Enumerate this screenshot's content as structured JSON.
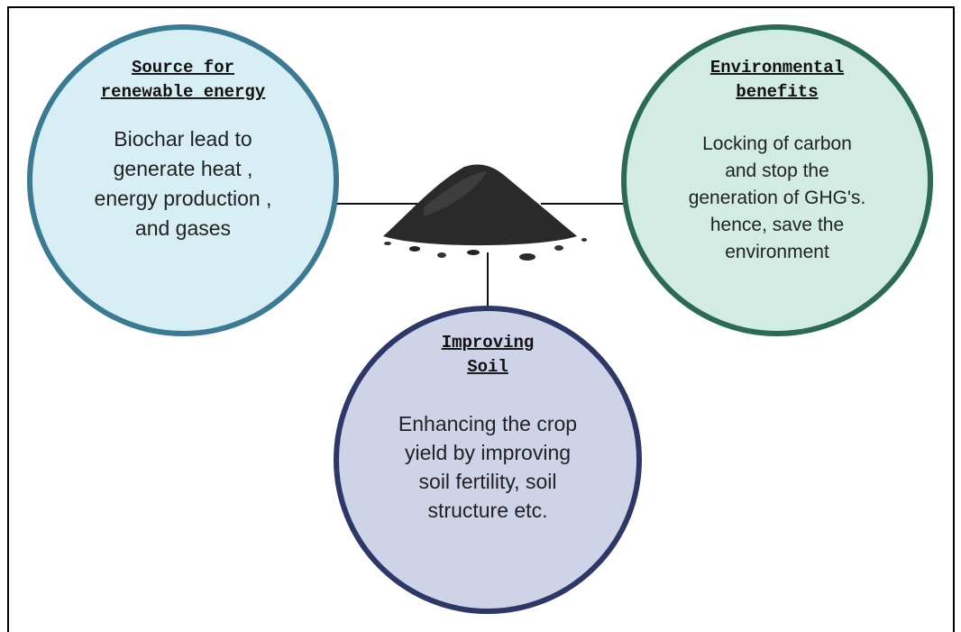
{
  "nodes": [
    {
      "title": [
        "Source for",
        "renewable energy"
      ],
      "body": [
        "Biochar lead to",
        "generate heat ,",
        "energy production ,",
        "and gases"
      ]
    },
    {
      "title": [
        "Environmental",
        "benefits"
      ],
      "body": [
        "Locking of carbon",
        "and stop the",
        "generation of GHG's.",
        "hence,  save the",
        "environment"
      ]
    },
    {
      "title": [
        "Improving",
        "Soil"
      ],
      "body": [
        "Enhancing the crop",
        "yield by improving",
        "soil fertility, soil",
        "structure etc."
      ]
    }
  ]
}
